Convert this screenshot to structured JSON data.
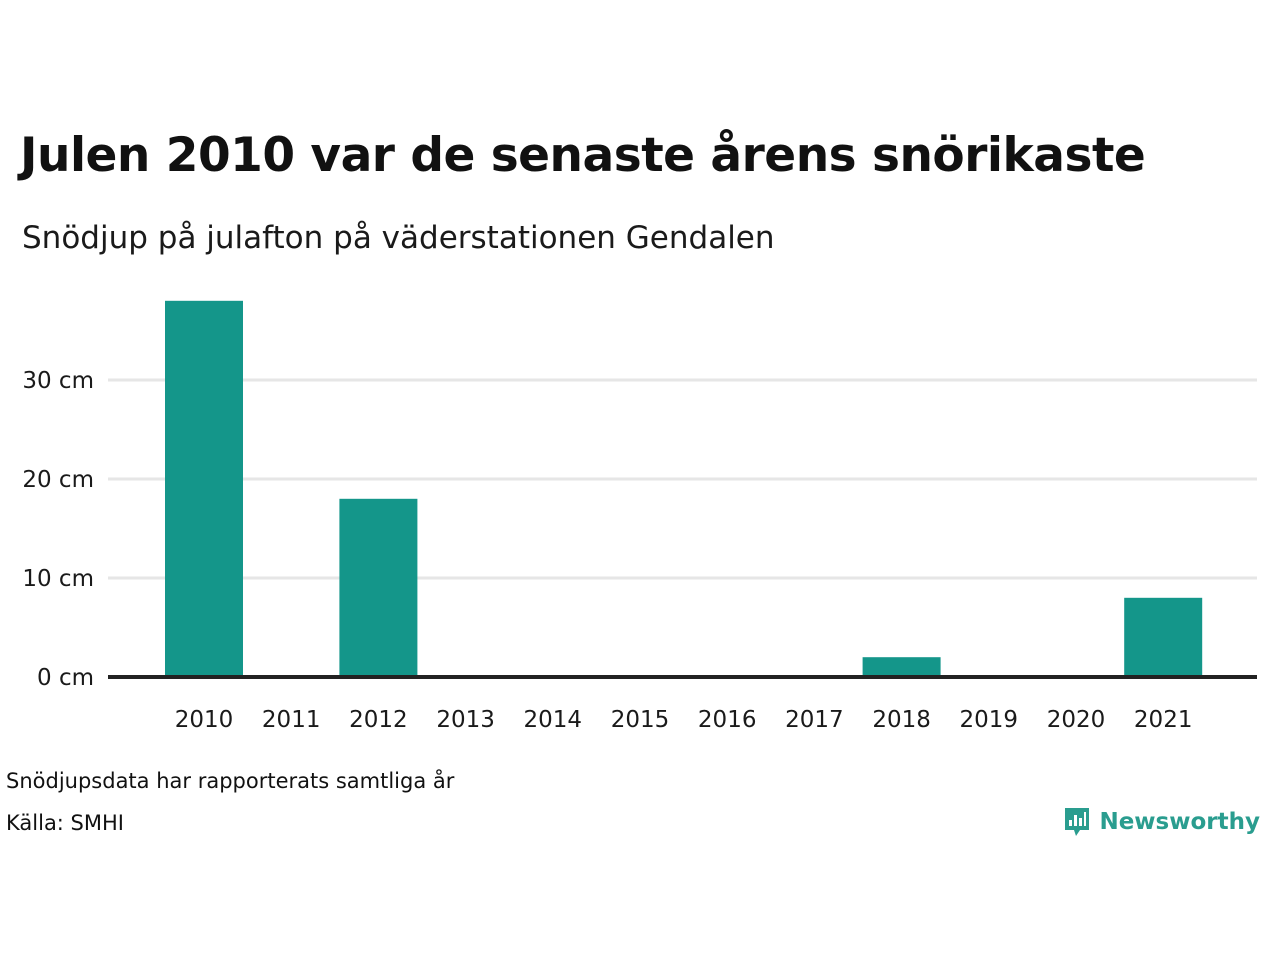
{
  "header": {
    "title": "Julen 2010 var de senaste årens snörikaste",
    "subtitle": "Snödjup på julafton på väderstationen Gendalen"
  },
  "footer": {
    "note": "Snödjupsdata har rapporterats samtliga år",
    "source": "Källa: SMHI",
    "brand": "Newsworthy",
    "brand_icon": "bar-chart-speech-bubble-icon"
  },
  "colors": {
    "bar": "#14968a",
    "grid": "#e6e6e6",
    "axis": "#222222",
    "brand": "#2a9d8f"
  },
  "chart_data": {
    "type": "bar",
    "title": "Julen 2010 var de senaste årens snörikaste",
    "subtitle": "Snödjup på julafton på väderstationen Gendalen",
    "categories": [
      "2010",
      "2011",
      "2012",
      "2013",
      "2014",
      "2015",
      "2016",
      "2017",
      "2018",
      "2019",
      "2020",
      "2021"
    ],
    "values": [
      38,
      0,
      18,
      0,
      0,
      0,
      0,
      0,
      2,
      0,
      0,
      8
    ],
    "unit": "cm",
    "yticks": [
      0,
      10,
      20,
      30
    ],
    "ytick_labels": [
      "0 cm",
      "10 cm",
      "20 cm",
      "30 cm"
    ],
    "ylim": [
      0,
      38
    ],
    "grid": true,
    "legend": "none"
  }
}
